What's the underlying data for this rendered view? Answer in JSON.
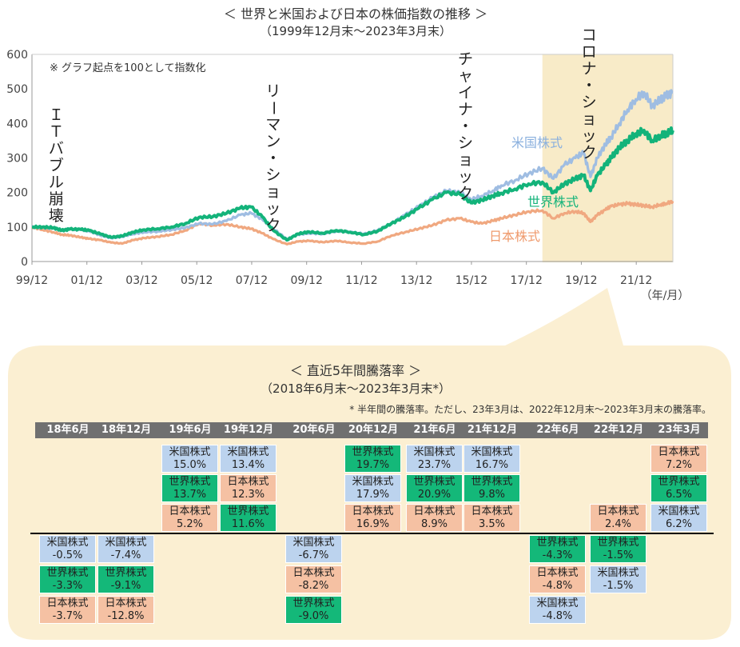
{
  "colors": {
    "us": "#9fbde2",
    "world": "#13b37a",
    "japan": "#f0a880",
    "highlight": "#f8ebc8",
    "panel": "#fbefd2",
    "header_bg": "#707070",
    "cell_us": "#bcd3ee",
    "cell_world": "#14b879",
    "cell_japan": "#f5c1a3"
  },
  "chart_data": [
    {
      "type": "line",
      "title": "＜ 世界と米国および日本の株価指数の推移 ＞",
      "subtitle": "（1999年12月末〜2023年3月末）",
      "note": "※ グラフ起点を100として指数化",
      "xunit": "（年/月）",
      "x_ticks": [
        "99/12",
        "01/12",
        "03/12",
        "05/12",
        "07/12",
        "09/12",
        "11/12",
        "13/12",
        "15/12",
        "17/12",
        "19/12",
        "21/12"
      ],
      "y_ticks": [
        "0",
        "100",
        "200",
        "300",
        "400",
        "500",
        "600"
      ],
      "ylim": [
        0,
        600
      ],
      "xlim": [
        1999.917,
        2023.25
      ],
      "grid": false,
      "annotations": [
        {
          "text": "ＩＴバブル崩壊",
          "x": 2000.8
        },
        {
          "text": "リーマン・ショック",
          "x": 2008.7
        },
        {
          "text": "チャイナ・ショック",
          "x": 2015.7
        },
        {
          "text": "コロナ・ショック",
          "x": 2020.2
        }
      ],
      "highlight_range": [
        2018.5,
        2023.25
      ],
      "series": [
        {
          "name": "米国株式",
          "x": [
            1999.92,
            2000.3,
            2000.7,
            2001.0,
            2001.3,
            2001.7,
            2002.0,
            2002.4,
            2002.8,
            2003.2,
            2003.6,
            2004.0,
            2004.5,
            2005.0,
            2005.5,
            2006.0,
            2006.5,
            2007.0,
            2007.5,
            2007.9,
            2008.3,
            2008.7,
            2009.2,
            2009.6,
            2010.0,
            2010.5,
            2011.0,
            2011.5,
            2012.0,
            2012.5,
            2013.0,
            2013.5,
            2014.0,
            2014.5,
            2015.0,
            2015.5,
            2015.9,
            2016.3,
            2016.7,
            2017.0,
            2017.5,
            2018.0,
            2018.5,
            2018.9,
            2019.3,
            2019.7,
            2020.0,
            2020.25,
            2020.5,
            2020.8,
            2021.0,
            2021.3,
            2021.6,
            2021.9,
            2022.2,
            2022.5,
            2022.8,
            2023.0,
            2023.25
          ],
          "values": [
            100,
            98,
            96,
            90,
            94,
            92,
            88,
            76,
            68,
            72,
            80,
            85,
            87,
            92,
            98,
            110,
            108,
            118,
            135,
            140,
            122,
            95,
            65,
            78,
            82,
            80,
            88,
            86,
            80,
            90,
            110,
            135,
            160,
            185,
            205,
            200,
            180,
            190,
            205,
            220,
            235,
            255,
            270,
            240,
            280,
            300,
            315,
            245,
            300,
            340,
            360,
            400,
            440,
            470,
            490,
            450,
            470,
            480,
            490
          ]
        },
        {
          "name": "世界株式",
          "x": [
            1999.92,
            2000.3,
            2000.7,
            2001.0,
            2001.3,
            2001.7,
            2002.0,
            2002.4,
            2002.8,
            2003.2,
            2003.6,
            2004.0,
            2004.5,
            2005.0,
            2005.5,
            2006.0,
            2006.5,
            2007.0,
            2007.5,
            2007.9,
            2008.3,
            2008.7,
            2009.2,
            2009.6,
            2010.0,
            2010.5,
            2011.0,
            2011.5,
            2012.0,
            2012.5,
            2013.0,
            2013.5,
            2014.0,
            2014.5,
            2015.0,
            2015.5,
            2015.9,
            2016.3,
            2016.7,
            2017.0,
            2017.5,
            2018.0,
            2018.5,
            2018.9,
            2019.3,
            2019.7,
            2020.0,
            2020.25,
            2020.5,
            2020.8,
            2021.0,
            2021.3,
            2021.6,
            2021.9,
            2022.2,
            2022.5,
            2022.8,
            2023.0,
            2023.25
          ],
          "values": [
            100,
            100,
            98,
            90,
            94,
            93,
            90,
            80,
            70,
            74,
            85,
            92,
            95,
            100,
            110,
            128,
            130,
            140,
            155,
            158,
            130,
            90,
            62,
            80,
            86,
            82,
            90,
            85,
            78,
            88,
            110,
            130,
            155,
            180,
            200,
            195,
            170,
            178,
            190,
            198,
            210,
            225,
            230,
            200,
            225,
            240,
            250,
            205,
            250,
            280,
            300,
            330,
            350,
            370,
            380,
            350,
            365,
            370,
            380
          ]
        },
        {
          "name": "日本株式",
          "x": [
            1999.92,
            2000.3,
            2000.7,
            2001.0,
            2001.3,
            2001.7,
            2002.0,
            2002.4,
            2002.8,
            2003.2,
            2003.6,
            2004.0,
            2004.5,
            2005.0,
            2005.5,
            2006.0,
            2006.5,
            2007.0,
            2007.5,
            2007.9,
            2008.3,
            2008.7,
            2009.2,
            2009.6,
            2010.0,
            2010.5,
            2011.0,
            2011.5,
            2012.0,
            2012.5,
            2013.0,
            2013.5,
            2014.0,
            2014.5,
            2015.0,
            2015.5,
            2015.9,
            2016.3,
            2016.7,
            2017.0,
            2017.5,
            2018.0,
            2018.5,
            2018.9,
            2019.3,
            2019.7,
            2020.0,
            2020.25,
            2020.5,
            2020.8,
            2021.0,
            2021.3,
            2021.6,
            2021.9,
            2022.2,
            2022.5,
            2022.8,
            2023.0,
            2023.25
          ],
          "values": [
            100,
            92,
            85,
            78,
            76,
            70,
            66,
            62,
            55,
            52,
            62,
            68,
            72,
            78,
            90,
            110,
            105,
            108,
            100,
            95,
            82,
            65,
            50,
            58,
            60,
            56,
            60,
            55,
            52,
            58,
            75,
            85,
            95,
            105,
            120,
            125,
            115,
            110,
            118,
            125,
            135,
            145,
            148,
            125,
            140,
            145,
            140,
            115,
            135,
            150,
            160,
            165,
            168,
            165,
            162,
            158,
            165,
            168,
            175
          ]
        }
      ]
    },
    {
      "type": "table",
      "title": "＜ 直近5年間騰落率 ＞",
      "subtitle": "（2018年6月末〜2023年3月末*）",
      "footnote": "* 半年間の騰落率。ただし、23年3月は、2022年12月末〜2023年3月末の騰落率。",
      "columns": [
        {
          "period": "18年6月",
          "positive": [],
          "negative": [
            {
              "asset": "米国株式",
              "value": "-0.5%",
              "kind": "us"
            },
            {
              "asset": "世界株式",
              "value": "-3.3%",
              "kind": "world"
            },
            {
              "asset": "日本株式",
              "value": "-3.7%",
              "kind": "japan"
            }
          ]
        },
        {
          "period": "18年12月",
          "positive": [],
          "negative": [
            {
              "asset": "米国株式",
              "value": "-7.4%",
              "kind": "us"
            },
            {
              "asset": "世界株式",
              "value": "-9.1%",
              "kind": "world"
            },
            {
              "asset": "日本株式",
              "value": "-12.8%",
              "kind": "japan"
            }
          ]
        },
        {
          "period": "19年6月",
          "positive": [
            {
              "asset": "米国株式",
              "value": "15.0%",
              "kind": "us"
            },
            {
              "asset": "世界株式",
              "value": "13.7%",
              "kind": "world"
            },
            {
              "asset": "日本株式",
              "value": "5.2%",
              "kind": "japan"
            }
          ],
          "negative": []
        },
        {
          "period": "19年12月",
          "positive": [
            {
              "asset": "米国株式",
              "value": "13.4%",
              "kind": "us"
            },
            {
              "asset": "日本株式",
              "value": "12.3%",
              "kind": "japan"
            },
            {
              "asset": "世界株式",
              "value": "11.6%",
              "kind": "world"
            }
          ],
          "negative": []
        },
        {
          "period": "20年6月",
          "positive": [],
          "negative": [
            {
              "asset": "米国株式",
              "value": "-6.7%",
              "kind": "us"
            },
            {
              "asset": "日本株式",
              "value": "-8.2%",
              "kind": "japan"
            },
            {
              "asset": "世界株式",
              "value": "-9.0%",
              "kind": "world"
            }
          ]
        },
        {
          "period": "20年12月",
          "positive": [
            {
              "asset": "世界株式",
              "value": "19.7%",
              "kind": "world"
            },
            {
              "asset": "米国株式",
              "value": "17.9%",
              "kind": "us"
            },
            {
              "asset": "日本株式",
              "value": "16.9%",
              "kind": "japan"
            }
          ],
          "negative": []
        },
        {
          "period": "21年6月",
          "positive": [
            {
              "asset": "米国株式",
              "value": "23.7%",
              "kind": "us"
            },
            {
              "asset": "世界株式",
              "value": "20.9%",
              "kind": "world"
            },
            {
              "asset": "日本株式",
              "value": "8.9%",
              "kind": "japan"
            }
          ],
          "negative": []
        },
        {
          "period": "21年12月",
          "positive": [
            {
              "asset": "米国株式",
              "value": "16.7%",
              "kind": "us"
            },
            {
              "asset": "世界株式",
              "value": "9.8%",
              "kind": "world"
            },
            {
              "asset": "日本株式",
              "value": "3.5%",
              "kind": "japan"
            }
          ],
          "negative": []
        },
        {
          "period": "22年6月",
          "positive": [],
          "negative": [
            {
              "asset": "世界株式",
              "value": "-4.3%",
              "kind": "world"
            },
            {
              "asset": "日本株式",
              "value": "-4.8%",
              "kind": "japan"
            },
            {
              "asset": "米国株式",
              "value": "-4.8%",
              "kind": "us"
            }
          ]
        },
        {
          "period": "22年12月",
          "positive": [
            {
              "asset": "日本株式",
              "value": "2.4%",
              "kind": "japan"
            }
          ],
          "negative": [
            {
              "asset": "世界株式",
              "value": "-1.5%",
              "kind": "world"
            },
            {
              "asset": "米国株式",
              "value": "-1.5%",
              "kind": "us"
            }
          ]
        },
        {
          "period": "23年3月",
          "positive": [
            {
              "asset": "日本株式",
              "value": "7.2%",
              "kind": "japan"
            },
            {
              "asset": "世界株式",
              "value": "6.5%",
              "kind": "world"
            },
            {
              "asset": "米国株式",
              "value": "6.2%",
              "kind": "us"
            }
          ],
          "negative": []
        }
      ]
    }
  ]
}
